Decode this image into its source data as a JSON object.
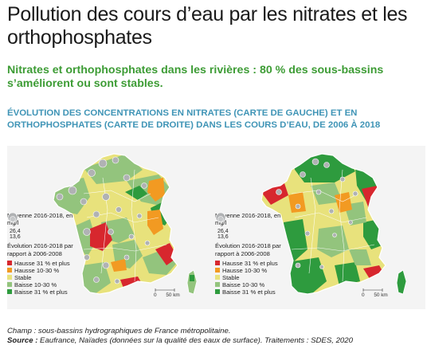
{
  "title": "Pollution des cours d’eau par les nitrates et les orthophosphates",
  "subtitle": "Nitrates et orthophosphates dans les rivières : 80 % des sous-bassins s’améliorent ou sont stables.",
  "chart_heading": "ÉVOLUTION DES CONCENTRATIONS EN NITRATES (CARTE DE GAUCHE) ET EN ORTHOPHOSPHATES (CARTE DE DROITE) DANS LES COURS D’EAU, DE 2006 À 2018",
  "colors": {
    "hausse_31": "#d7272e",
    "hausse_10_30": "#f29a22",
    "stable": "#e8e27c",
    "baisse_10_30": "#93c47d",
    "baisse_31": "#2e9b3e",
    "circle": "#b0b2b4",
    "background": "#f4f4f4"
  },
  "maps": [
    {
      "name": "nitrates",
      "legend": {
        "circle_heading": "Moyenne 2016-2018, en mg/l",
        "circle_values": [
          "26,4",
          "13,6"
        ],
        "evolution_heading": "Évolution 2016-2018 par rapport à 2006-2008",
        "items": [
          {
            "label": "Hausse 31 % et plus",
            "key": "hausse_31"
          },
          {
            "label": "Hausse 10-30 %",
            "key": "hausse_10_30"
          },
          {
            "label": "Stable",
            "key": "stable"
          },
          {
            "label": "Baisse 10-30 %",
            "key": "baisse_10_30"
          },
          {
            "label": "Baisse 31 % et plus",
            "key": "baisse_31"
          }
        ]
      },
      "scale_labels": [
        "0",
        "50 km"
      ]
    },
    {
      "name": "orthophosphates",
      "legend": {
        "circle_heading": "Moyenne 2016-2018, en mg/l",
        "circle_values": [
          "26,4",
          "13,6"
        ],
        "evolution_heading": "Évolution 2016-2018 par rapport à 2006-2008",
        "items": [
          {
            "label": "Hausse 31 % et plus",
            "key": "hausse_31"
          },
          {
            "label": "Hausse 10-30 %",
            "key": "hausse_10_30"
          },
          {
            "label": "Stable",
            "key": "stable"
          },
          {
            "label": "Baisse 10-30 %",
            "key": "baisse_10_30"
          },
          {
            "label": "Baisse 31 % et plus",
            "key": "baisse_31"
          }
        ]
      },
      "scale_labels": [
        "0",
        "50 km"
      ]
    }
  ],
  "footer": {
    "champ": "Champ : sous-bassins hydrographiques de France métropolitaine.",
    "source_label": "Source :",
    "source_text": " Eaufrance, Naïades (données sur la qualité des eaux de surface). Traitements : SDES, 2020"
  }
}
